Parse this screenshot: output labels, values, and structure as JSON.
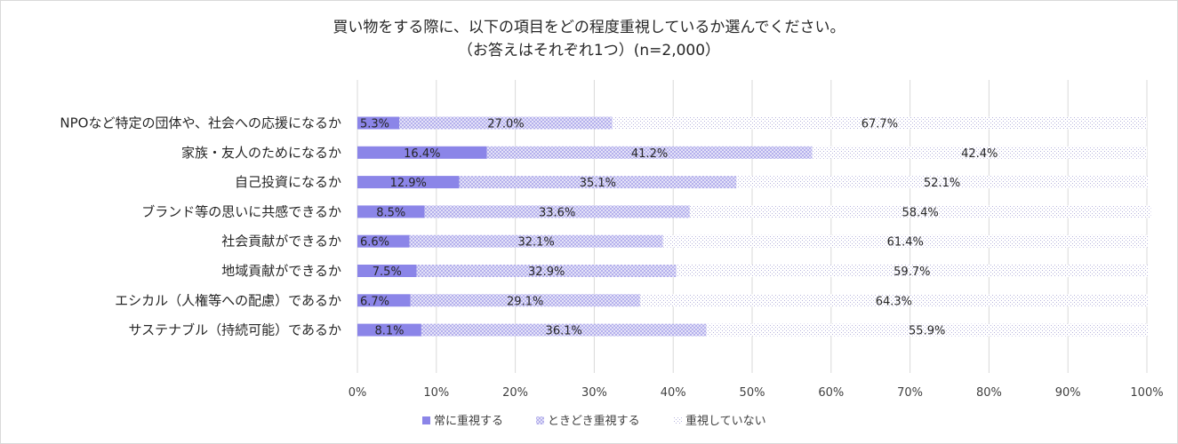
{
  "chart_data": {
    "type": "bar",
    "orientation": "horizontal",
    "stacked": "percent",
    "title": "買い物をする際に、以下の項目をどの程度重視しているか選んでください。",
    "subtitle": "（お答えはそれぞれ1つ）(n=2,000）",
    "categories": [
      "NPOなど特定の団体や、社会への応援になるか",
      "家族・友人のためになるか",
      "自己投資になるか",
      "ブランド等の思いに共感できるか",
      "社会貢献ができるか",
      "地域貢献ができるか",
      "エシカル（人権等への配慮）であるか",
      "サステナブル（持続可能）であるか"
    ],
    "series": [
      {
        "name": "常に重視する",
        "values": [
          5.3,
          16.4,
          12.9,
          8.5,
          6.6,
          7.5,
          6.7,
          8.1
        ],
        "labels": [
          "5.3%",
          "16.4%",
          "12.9%",
          "8.5%",
          "6.6%",
          "7.5%",
          "6.7%",
          "8.1%"
        ],
        "color": "#8b85e8"
      },
      {
        "name": "ときどき重視する",
        "values": [
          27.0,
          41.2,
          35.1,
          33.6,
          32.1,
          32.9,
          29.1,
          36.1
        ],
        "labels": [
          "27.0%",
          "41.2%",
          "35.1%",
          "33.6%",
          "32.1%",
          "32.9%",
          "29.1%",
          "36.1%"
        ],
        "color": "#c9c6f2"
      },
      {
        "name": "重視していない",
        "values": [
          67.7,
          42.4,
          52.1,
          58.4,
          61.4,
          59.7,
          64.3,
          55.9
        ],
        "labels": [
          "67.7%",
          "42.4%",
          "52.1%",
          "58.4%",
          "61.4%",
          "59.7%",
          "64.3%",
          "55.9%"
        ],
        "color": "#d6d6ea"
      }
    ],
    "xlim": [
      0,
      100
    ],
    "xticks": [
      "0%",
      "10%",
      "20%",
      "30%",
      "40%",
      "50%",
      "60%",
      "70%",
      "80%",
      "90%",
      "100%"
    ],
    "grid": true,
    "legend_position": "bottom"
  }
}
